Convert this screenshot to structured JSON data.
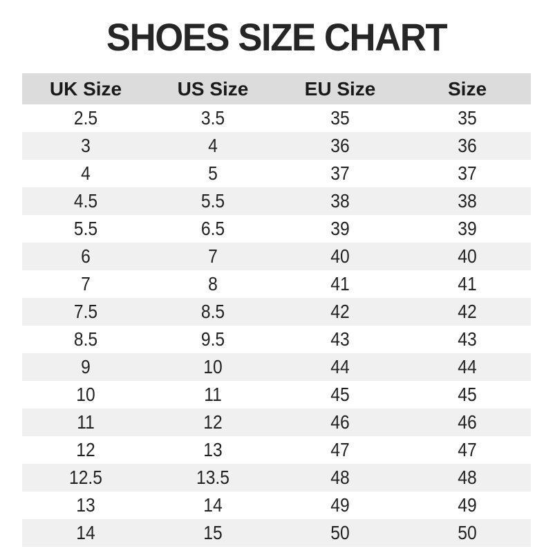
{
  "title": "SHOES SIZE CHART",
  "colors": {
    "title_color": "#262626",
    "header_bg": "#dcdcdc",
    "header_text": "#1a1a1a",
    "stripe_bg": "#f0f0f1",
    "text_color": "#222222"
  },
  "chart_data": {
    "type": "table",
    "title": "SHOES SIZE CHART",
    "columns": [
      "UK Size",
      "US Size",
      "EU Size",
      "Size"
    ],
    "rows": [
      [
        "2.5",
        "3.5",
        "35",
        "35"
      ],
      [
        "3",
        "4",
        "36",
        "36"
      ],
      [
        "4",
        "5",
        "37",
        "37"
      ],
      [
        "4.5",
        "5.5",
        "38",
        "38"
      ],
      [
        "5.5",
        "6.5",
        "39",
        "39"
      ],
      [
        "6",
        "7",
        "40",
        "40"
      ],
      [
        "7",
        "8",
        "41",
        "41"
      ],
      [
        "7.5",
        "8.5",
        "42",
        "42"
      ],
      [
        "8.5",
        "9.5",
        "43",
        "43"
      ],
      [
        "9",
        "10",
        "44",
        "44"
      ],
      [
        "10",
        "11",
        "45",
        "45"
      ],
      [
        "11",
        "12",
        "46",
        "46"
      ],
      [
        "12",
        "13",
        "47",
        "47"
      ],
      [
        "12.5",
        "13.5",
        "48",
        "48"
      ],
      [
        "13",
        "14",
        "49",
        "49"
      ],
      [
        "14",
        "15",
        "50",
        "50"
      ]
    ],
    "layout": {
      "header_background": "#dcdcdc",
      "row_stripe_background": "#f0f0f1",
      "alternating_rows": true,
      "borders": "none"
    }
  }
}
